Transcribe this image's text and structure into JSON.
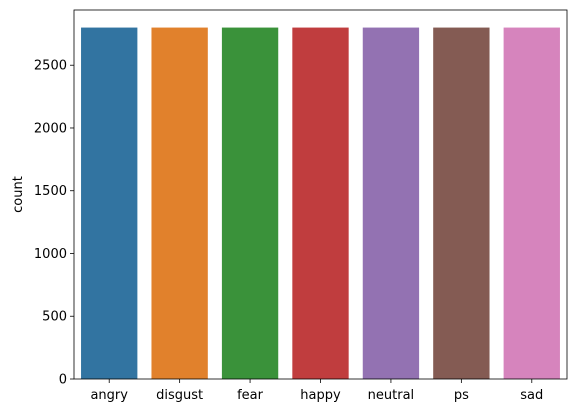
{
  "chart_data": {
    "type": "bar",
    "categories": [
      "angry",
      "disgust",
      "fear",
      "happy",
      "neutral",
      "ps",
      "sad"
    ],
    "values": [
      2800,
      2800,
      2800,
      2800,
      2800,
      2800,
      2800
    ],
    "colors": [
      "#3274a1",
      "#e1812c",
      "#3a923a",
      "#c03d3e",
      "#9372b2",
      "#845b53",
      "#d684bd"
    ],
    "title": "",
    "xlabel": "",
    "ylabel": "count",
    "ylim": [
      0,
      2940
    ],
    "yticks": [
      0,
      500,
      1000,
      1500,
      2000,
      2500
    ],
    "grid": false,
    "legend": "none"
  }
}
